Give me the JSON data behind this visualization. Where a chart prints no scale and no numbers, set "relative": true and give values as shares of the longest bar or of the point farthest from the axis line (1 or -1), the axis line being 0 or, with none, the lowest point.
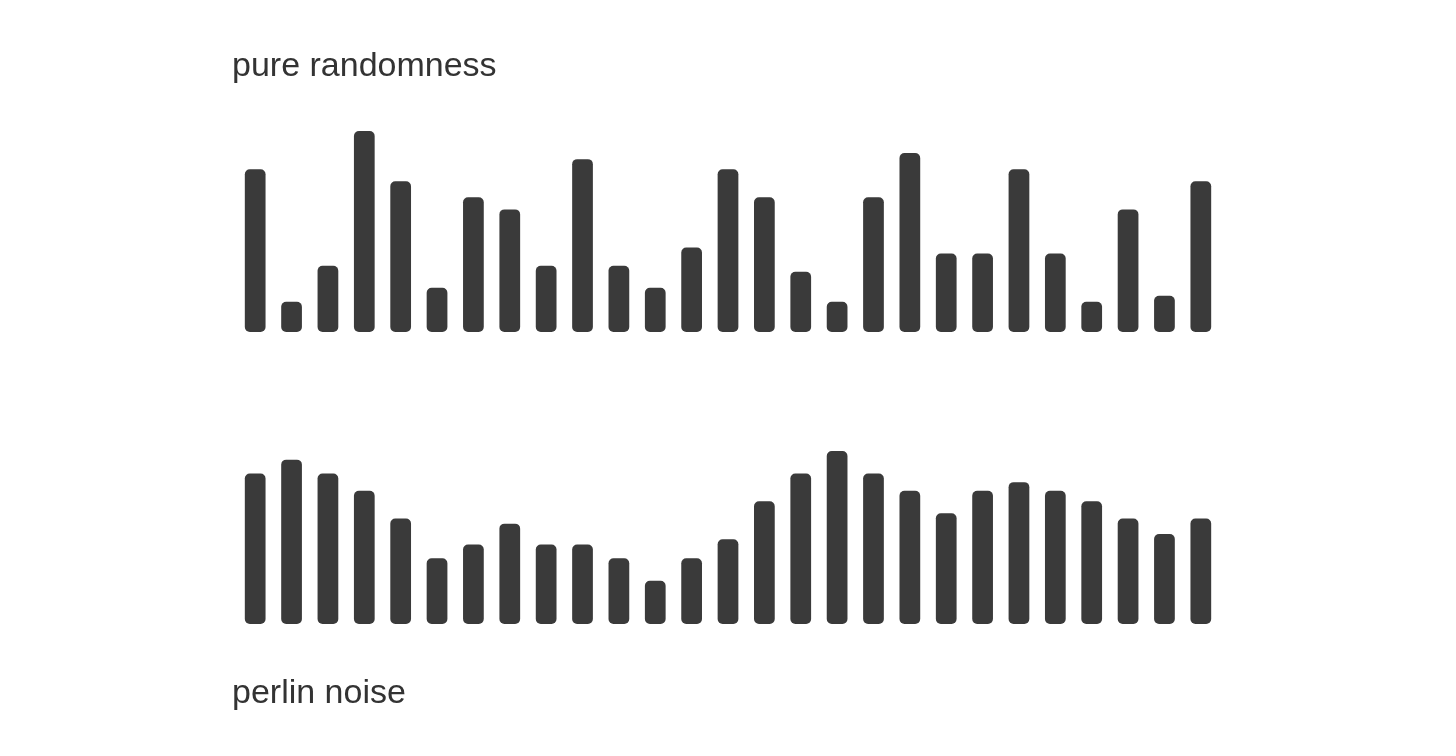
{
  "chart_data": [
    {
      "type": "bar",
      "title": "pure randomness",
      "relative": true,
      "categories": [
        null,
        null,
        null,
        null,
        null,
        null,
        null,
        null,
        null,
        null,
        null,
        null,
        null,
        null,
        null,
        null,
        null,
        null,
        null,
        null,
        null,
        null,
        null,
        null,
        null,
        null,
        null
      ],
      "series": [
        {
          "color": "#3a3a3a",
          "values": [
            0.81,
            0.15,
            0.33,
            1,
            0.75,
            0.22,
            0.67,
            0.61,
            0.33,
            0.86,
            0.33,
            0.22,
            0.42,
            0.81,
            0.67,
            0.3,
            0.15,
            0.67,
            0.89,
            0.39,
            0.39,
            0.81,
            0.39,
            0.15,
            0.61,
            0.18,
            0.75
          ]
        }
      ]
    },
    {
      "type": "bar",
      "title": "perlin noise",
      "relative": true,
      "categories": [
        null,
        null,
        null,
        null,
        null,
        null,
        null,
        null,
        null,
        null,
        null,
        null,
        null,
        null,
        null,
        null,
        null,
        null,
        null,
        null,
        null,
        null,
        null,
        null,
        null,
        null,
        null
      ],
      "series": [
        {
          "color": "#3a3a3a",
          "values": [
            0.87,
            0.95,
            0.87,
            0.77,
            0.61,
            0.38,
            0.46,
            0.58,
            0.46,
            0.46,
            0.38,
            0.25,
            0.38,
            0.49,
            0.71,
            0.87,
            1,
            0.87,
            0.77,
            0.64,
            0.77,
            0.82,
            0.77,
            0.71,
            0.61,
            0.52,
            0.61
          ]
        }
      ]
    }
  ]
}
